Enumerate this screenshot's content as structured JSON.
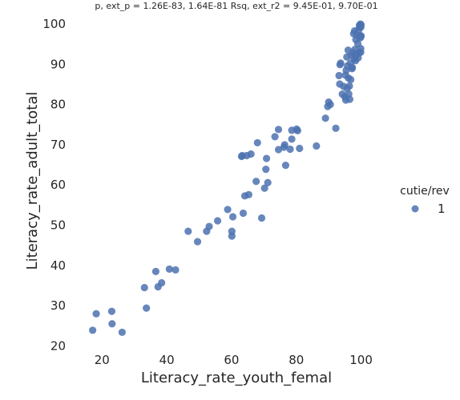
{
  "chart_data": {
    "type": "scatter",
    "title": "p, ext_p = 1.26E-83, 1.64E-81 Rsq, ext_r2 = 9.45E-01, 9.70E-01",
    "xlabel": "Literacy_rate_youth_femal",
    "ylabel": "Literacy_rate_adult_total",
    "xlim": [
      12,
      111
    ],
    "ylim": [
      17.5,
      102
    ],
    "xticks": [
      20,
      40,
      60,
      80,
      100
    ],
    "yticks": [
      20,
      30,
      40,
      50,
      60,
      70,
      80,
      90,
      100
    ],
    "grid": false,
    "marker_color": "#4c72b0",
    "legend": {
      "title": "cutie/rev",
      "entries": [
        "1"
      ],
      "placement": "right"
    },
    "series": [
      {
        "name": "1",
        "points": [
          [
            17.1,
            23.9
          ],
          [
            18.2,
            28.0
          ],
          [
            23.0,
            28.6
          ],
          [
            23.1,
            25.5
          ],
          [
            26.2,
            23.4
          ],
          [
            33.1,
            34.5
          ],
          [
            33.7,
            29.4
          ],
          [
            36.6,
            38.5
          ],
          [
            37.3,
            34.7
          ],
          [
            38.4,
            35.7
          ],
          [
            40.8,
            39.1
          ],
          [
            42.7,
            38.9
          ],
          [
            46.6,
            48.5
          ],
          [
            49.5,
            45.9
          ],
          [
            52.3,
            48.5
          ],
          [
            53.1,
            49.7
          ],
          [
            55.7,
            51.1
          ],
          [
            58.8,
            53.9
          ],
          [
            60.1,
            48.5
          ],
          [
            60.1,
            47.3
          ],
          [
            60.4,
            52.1
          ],
          [
            63.1,
            67.1
          ],
          [
            63.3,
            67.3
          ],
          [
            63.6,
            53.0
          ],
          [
            64.1,
            57.3
          ],
          [
            64.7,
            67.3
          ],
          [
            65.3,
            57.6
          ],
          [
            66.0,
            67.7
          ],
          [
            67.6,
            60.9
          ],
          [
            68.0,
            70.5
          ],
          [
            69.3,
            51.8
          ],
          [
            70.2,
            59.2
          ],
          [
            70.6,
            63.9
          ],
          [
            70.8,
            66.6
          ],
          [
            71.2,
            60.6
          ],
          [
            73.4,
            72.0
          ],
          [
            74.5,
            73.8
          ],
          [
            74.5,
            68.8
          ],
          [
            76.2,
            69.4
          ],
          [
            76.4,
            70.0
          ],
          [
            76.7,
            64.9
          ],
          [
            78.1,
            68.9
          ],
          [
            78.6,
            73.6
          ],
          [
            78.6,
            71.4
          ],
          [
            80.1,
            73.9
          ],
          [
            80.4,
            73.5
          ],
          [
            81.0,
            69.1
          ],
          [
            86.2,
            69.7
          ],
          [
            89.0,
            76.6
          ],
          [
            89.7,
            79.5
          ],
          [
            90.0,
            80.6
          ],
          [
            90.5,
            80.0
          ],
          [
            92.2,
            74.1
          ],
          [
            93.2,
            87.2
          ],
          [
            93.4,
            85.1
          ],
          [
            93.5,
            89.9
          ],
          [
            93.7,
            90.3
          ],
          [
            94.2,
            82.6
          ],
          [
            94.6,
            84.5
          ],
          [
            95.0,
            81.9
          ],
          [
            95.2,
            87.3
          ],
          [
            95.3,
            81.1
          ],
          [
            95.4,
            88.5
          ],
          [
            95.6,
            91.8
          ],
          [
            95.7,
            84.0
          ],
          [
            95.8,
            89.6
          ],
          [
            96.0,
            93.5
          ],
          [
            96.1,
            86.6
          ],
          [
            96.2,
            82.6
          ],
          [
            96.4,
            84.6
          ],
          [
            96.5,
            81.3
          ],
          [
            96.7,
            90.3
          ],
          [
            96.8,
            86.2
          ],
          [
            97.0,
            92.2
          ],
          [
            97.2,
            88.9
          ],
          [
            97.3,
            89.2
          ],
          [
            97.5,
            92.9
          ],
          [
            97.7,
            97.6
          ],
          [
            97.9,
            91.3
          ],
          [
            98.0,
            98.3
          ],
          [
            98.1,
            93.7
          ],
          [
            98.3,
            90.9
          ],
          [
            98.4,
            96.1
          ],
          [
            98.6,
            92.4
          ],
          [
            98.8,
            97.2
          ],
          [
            99.0,
            95.1
          ],
          [
            99.1,
            91.6
          ],
          [
            99.3,
            98.6
          ],
          [
            99.4,
            92.8
          ],
          [
            99.5,
            99.7
          ],
          [
            99.6,
            99.3
          ],
          [
            99.7,
            96.8
          ],
          [
            99.8,
            100.0
          ],
          [
            99.9,
            99.2
          ],
          [
            99.9,
            97.1
          ],
          [
            99.9,
            93.9
          ],
          [
            99.9,
            93.0
          ],
          [
            100.0,
            99.8
          ],
          [
            100.0,
            97.0
          ],
          [
            99.8,
            96.6
          ]
        ]
      }
    ]
  }
}
